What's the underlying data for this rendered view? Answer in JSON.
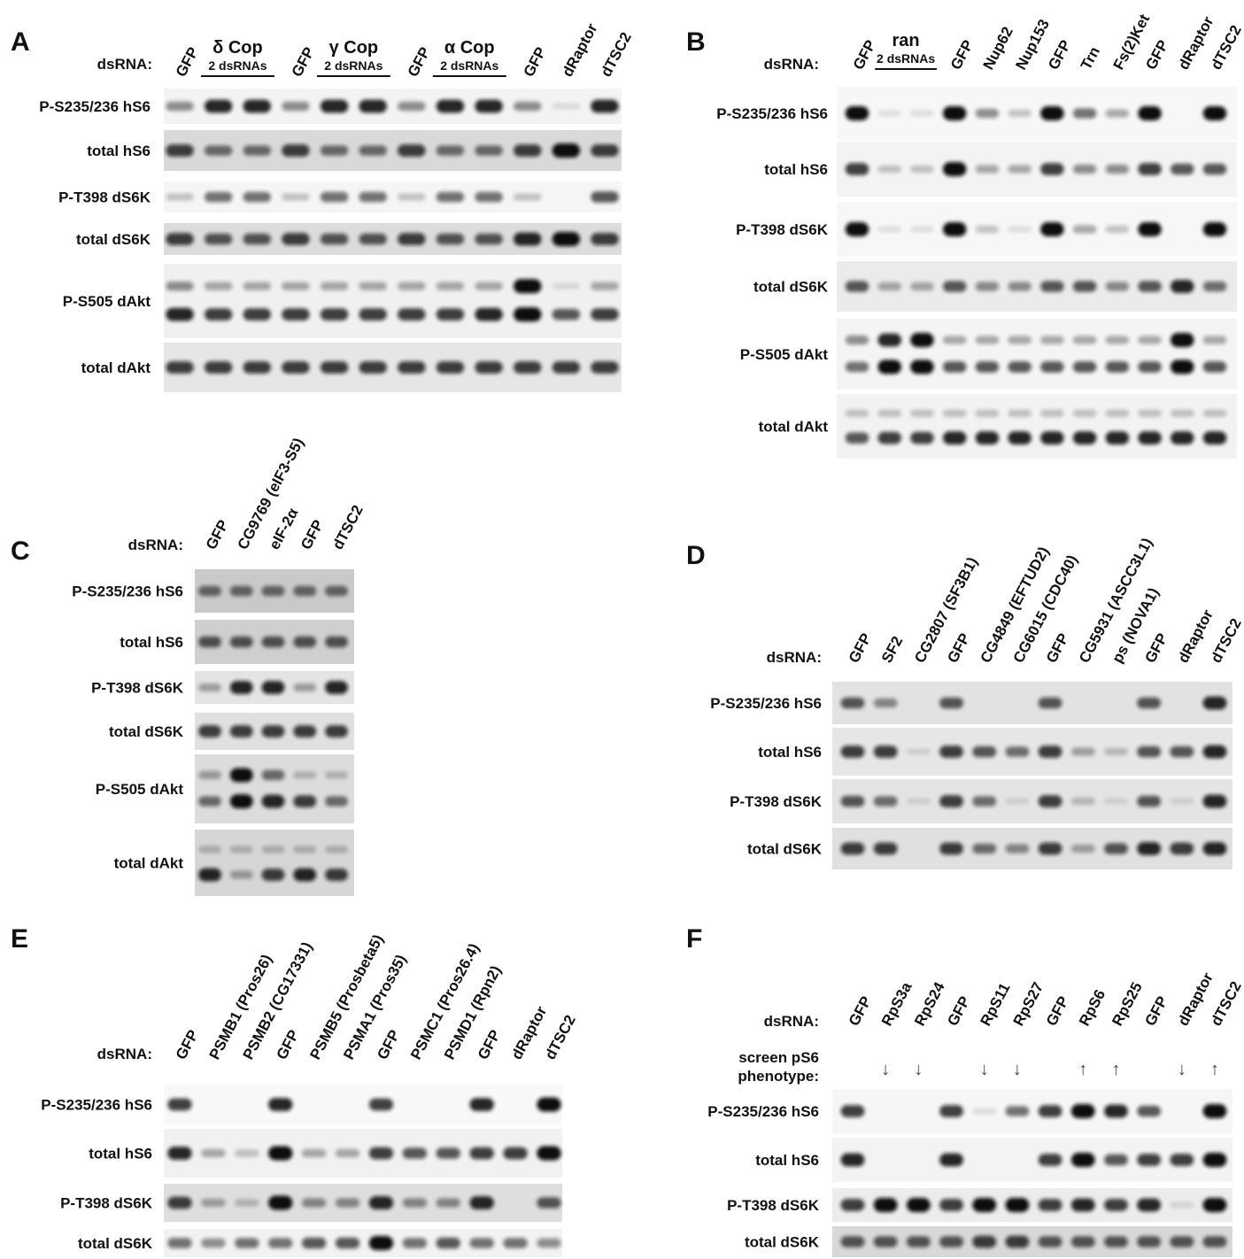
{
  "panels": [
    {
      "letter": "A",
      "dsrna_label": "dsRNA:",
      "lanes": [
        "GFP",
        {
          "label": "δ Cop",
          "note": "2 dsRNAs",
          "lanes": 2
        },
        "GFP",
        {
          "label": "γ Cop",
          "note": "2 dsRNAs",
          "lanes": 2
        },
        "GFP",
        {
          "label": "α Cop",
          "note": "2 dsRNAs",
          "lanes": 2
        },
        "GFP",
        "dRaptor",
        "dTSC2"
      ],
      "rows": [
        "P-S235/236 hS6",
        "total hS6",
        "P-T398 dS6K",
        "total dS6K",
        "P-S505 dAkt",
        "total dAkt"
      ]
    },
    {
      "letter": "B",
      "dsrna_label": "dsRNA:",
      "lanes": [
        "GFP",
        {
          "label": "ran",
          "note": "2 dsRNAs",
          "lanes": 2
        },
        "GFP",
        "Nup62",
        "Nup153",
        "GFP",
        "Trn",
        "Fs(2)Ket",
        "GFP",
        "dRaptor",
        "dTSC2"
      ],
      "rows": [
        "P-S235/236 hS6",
        "total hS6",
        "P-T398 dS6K",
        "total dS6K",
        "P-S505 dAkt",
        "total dAkt"
      ]
    },
    {
      "letter": "C",
      "dsrna_label": "dsRNA:",
      "lanes": [
        "GFP",
        "CG9769 (eIF3-S5)",
        "eIF-2α",
        "GFP",
        "dTSC2"
      ],
      "rows": [
        "P-S235/236 hS6",
        "total hS6",
        "P-T398 dS6K",
        "total dS6K",
        "P-S505 dAkt",
        "total dAkt"
      ]
    },
    {
      "letter": "D",
      "dsrna_label": "dsRNA:",
      "lanes": [
        "GFP",
        "SF2",
        "CG2807 (SF3B1)",
        "GFP",
        "CG4849 (EFTUD2)",
        "CG6015 (CDC40)",
        "GFP",
        "CG5931 (ASCC3L1)",
        "ps (NOVA1)",
        "GFP",
        "dRaptor",
        "dTSC2"
      ],
      "rows": [
        "P-S235/236 hS6",
        "total hS6",
        "P-T398 dS6K",
        "total dS6K"
      ]
    },
    {
      "letter": "E",
      "dsrna_label": "dsRNA:",
      "lanes": [
        "GFP",
        "PSMB1 (Pros26)",
        "PSMB2 (CG17331)",
        "GFP",
        "PSMB5 (Prosbeta5)",
        "PSMA1 (Pros35)",
        "GFP",
        "PSMC1 (Pros26.4)",
        "PSMD1 (Rpn2)",
        "GFP",
        "dRaptor",
        "dTSC2"
      ],
      "rows": [
        "P-S235/236 hS6",
        "total hS6",
        "P-T398 dS6K",
        "total dS6K"
      ]
    },
    {
      "letter": "F",
      "dsrna_label": "dsRNA:",
      "lanes": [
        "GFP",
        "RpS3a",
        "RpS24",
        "GFP",
        "RpS11",
        "RpS27",
        "GFP",
        "RpS6",
        "RpS25",
        "GFP",
        "dRaptor",
        "dTSC2"
      ],
      "phenotype_label": [
        "screen pS6",
        "phenotype:"
      ],
      "phenotype_arrows": [
        null,
        "↓",
        "↓",
        null,
        "↓",
        "↓",
        null,
        "↑",
        "↑",
        null,
        "↓",
        "↑"
      ],
      "rows": [
        "P-S235/236 hS6",
        "total hS6",
        "P-T398 dS6K",
        "total dS6K"
      ]
    }
  ]
}
